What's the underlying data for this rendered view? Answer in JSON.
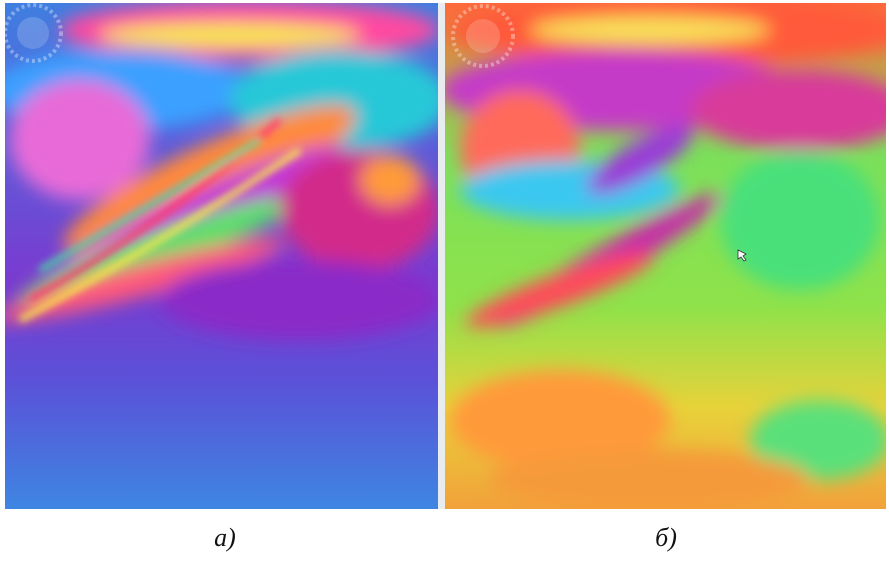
{
  "panels": [
    {
      "caption": "а)"
    },
    {
      "caption": "б)"
    }
  ]
}
